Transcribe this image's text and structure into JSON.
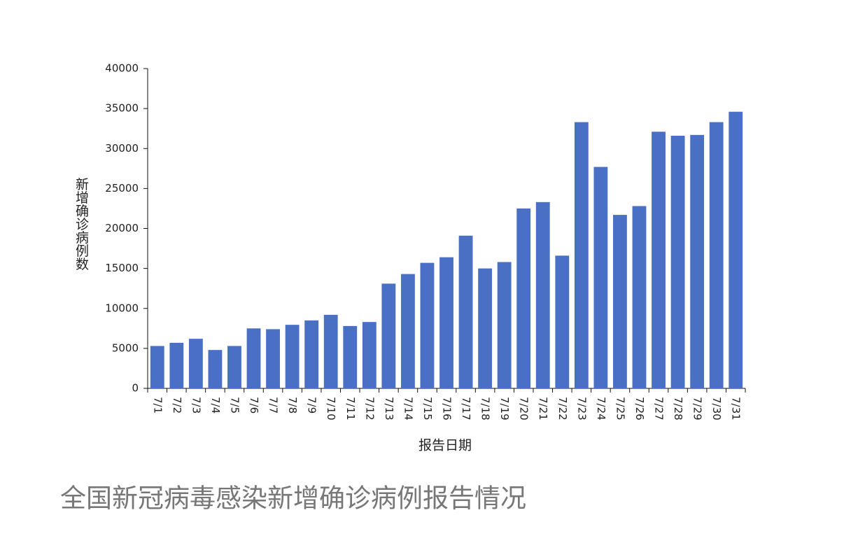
{
  "chart_data": {
    "type": "bar",
    "title": "全国新冠病毒感染新增确诊病例报告情况",
    "x_label": "报告日期",
    "y_label": "新增确诊病例数",
    "categories": [
      "7/1",
      "7/2",
      "7/3",
      "7/4",
      "7/5",
      "7/6",
      "7/7",
      "7/8",
      "7/9",
      "7/10",
      "7/11",
      "7/12",
      "7/13",
      "7/14",
      "7/15",
      "7/16",
      "7/17",
      "7/18",
      "7/19",
      "7/20",
      "7/21",
      "7/22",
      "7/23",
      "7/24",
      "7/25",
      "7/26",
      "7/27",
      "7/28",
      "7/29",
      "7/30",
      "7/31"
    ],
    "values": [
      5300,
      5700,
      6200,
      4800,
      5300,
      7500,
      7400,
      7950,
      8500,
      9200,
      7800,
      8300,
      13100,
      14300,
      15700,
      16400,
      19100,
      15000,
      15800,
      22500,
      23300,
      16600,
      33300,
      27700,
      21700,
      22800,
      32100,
      31600,
      31700,
      33300,
      34600
    ],
    "color": "#4a70c6",
    "ylim": [
      0,
      40000
    ],
    "yticks": [
      0,
      5000,
      10000,
      15000,
      20000,
      25000,
      30000,
      35000,
      40000
    ],
    "grid": false
  }
}
